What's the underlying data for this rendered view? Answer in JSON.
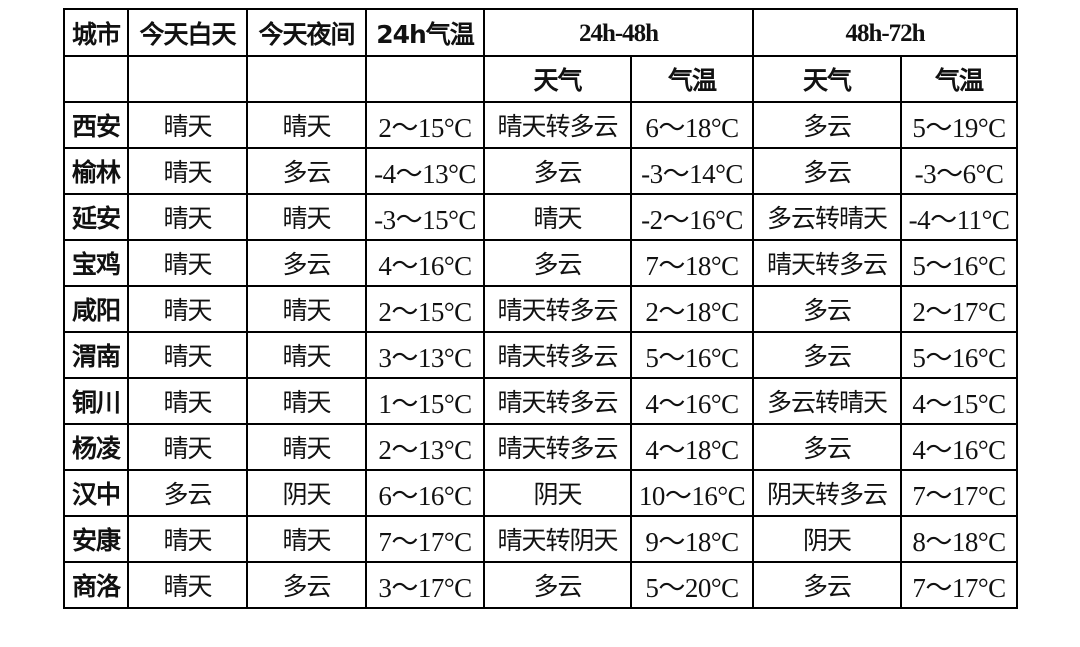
{
  "header": {
    "city": "城市",
    "today_day": "今天白天",
    "today_night": "今天夜间",
    "temp_24h": "24h气温",
    "group_24_48": "24h-48h",
    "group_48_72": "48h-72h",
    "weather": "天气",
    "temperature": "气温"
  },
  "rows": [
    [
      "西安",
      "晴天",
      "晴天",
      "2～15°C",
      "晴天转多云",
      "6～18°C",
      "多云",
      "5～19°C"
    ],
    [
      "榆林",
      "晴天",
      "多云",
      "-4～13°C",
      "多云",
      "-3～14°C",
      "多云",
      "-3～6°C"
    ],
    [
      "延安",
      "晴天",
      "晴天",
      "-3～15°C",
      "晴天",
      "-2～16°C",
      "多云转晴天",
      "-4～11°C"
    ],
    [
      "宝鸡",
      "晴天",
      "多云",
      "4～16°C",
      "多云",
      "7～18°C",
      "晴天转多云",
      "5～16°C"
    ],
    [
      "咸阳",
      "晴天",
      "晴天",
      "2～15°C",
      "晴天转多云",
      "2～18°C",
      "多云",
      "2～17°C"
    ],
    [
      "渭南",
      "晴天",
      "晴天",
      "3～13°C",
      "晴天转多云",
      "5～16°C",
      "多云",
      "5～16°C"
    ],
    [
      "铜川",
      "晴天",
      "晴天",
      "1～15°C",
      "晴天转多云",
      "4～16°C",
      "多云转晴天",
      "4～15°C"
    ],
    [
      "杨凌",
      "晴天",
      "晴天",
      "2～13°C",
      "晴天转多云",
      "4～18°C",
      "多云",
      "4～16°C"
    ],
    [
      "汉中",
      "多云",
      "阴天",
      "6～16°C",
      "阴天",
      "10～16°C",
      "阴天转多云",
      "7～17°C"
    ],
    [
      "安康",
      "晴天",
      "晴天",
      "7～17°C",
      "晴天转阴天",
      "9～18°C",
      "阴天",
      "8～18°C"
    ],
    [
      "商洛",
      "晴天",
      "多云",
      "3～17°C",
      "多云",
      "5～20°C",
      "多云",
      "7～17°C"
    ]
  ]
}
